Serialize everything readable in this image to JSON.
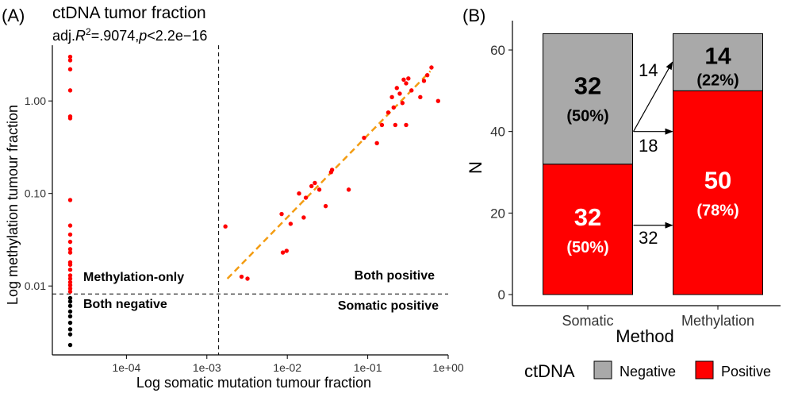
{
  "chart_data": [
    {
      "type": "scatter",
      "panel_label": "(A)",
      "title": "ctDNA tumor fraction",
      "subtitle": {
        "prefix": "adj.",
        "r": "R",
        "sup": "2",
        "stat": "=.9074,",
        "p": "p",
        "pval": "<2.2e−16"
      },
      "xlabel": "Log somatic mutation tumour fraction",
      "ylabel": "Log methylation tumour fraction",
      "x_scale": "log10",
      "y_scale": "log10",
      "xlim": [
        1.2e-05,
        1.0
      ],
      "ylim": [
        0.0018,
        4.0
      ],
      "x_ticks": [
        {
          "v": 0.0001,
          "label": "1e-04"
        },
        {
          "v": 0.001,
          "label": "1e-03"
        },
        {
          "v": 0.01,
          "label": "1e-02"
        },
        {
          "v": 0.1,
          "label": "1e-01"
        },
        {
          "v": 1.0,
          "label": "1e+00"
        }
      ],
      "y_ticks": [
        {
          "v": 0.01,
          "label": "0.01"
        },
        {
          "v": 0.1,
          "label": "0.10"
        },
        {
          "v": 1.0,
          "label": "1.00"
        }
      ],
      "threshold_x": 0.0014,
      "threshold_y": 0.0082,
      "grid": false,
      "quadrant_labels": {
        "top_left": "Methylation-only",
        "bottom_left": "Both negative",
        "top_right": "Both positive",
        "bottom_right": "Somatic positive"
      },
      "colors": {
        "positive": "#ff0000",
        "negative": "#000000",
        "fit": "#f39c12"
      },
      "fit_line": [
        [
          0.0018,
          0.012
        ],
        [
          0.6,
          2.1
        ]
      ],
      "red_points": [
        [
          2e-05,
          3.0
        ],
        [
          2e-05,
          2.75
        ],
        [
          2e-05,
          2.2
        ],
        [
          2e-05,
          1.3
        ],
        [
          2e-05,
          0.68
        ],
        [
          2e-05,
          0.65
        ],
        [
          2e-05,
          0.085
        ],
        [
          2e-05,
          0.045
        ],
        [
          2e-05,
          0.036
        ],
        [
          2e-05,
          0.03
        ],
        [
          2e-05,
          0.025
        ],
        [
          2e-05,
          0.023
        ],
        [
          2e-05,
          0.018
        ],
        [
          2e-05,
          0.017
        ],
        [
          2e-05,
          0.015
        ],
        [
          2e-05,
          0.013
        ],
        [
          2e-05,
          0.012
        ],
        [
          2e-05,
          0.011
        ],
        [
          2e-05,
          0.0102
        ],
        [
          2e-05,
          0.0094
        ],
        [
          2e-05,
          0.0087
        ],
        [
          0.0017,
          0.044
        ],
        [
          0.0027,
          0.0126
        ],
        [
          0.0032,
          0.012
        ],
        [
          0.0085,
          0.06
        ],
        [
          0.0088,
          0.023
        ],
        [
          0.0098,
          0.024
        ],
        [
          0.011,
          0.047
        ],
        [
          0.014,
          0.1
        ],
        [
          0.016,
          0.055
        ],
        [
          0.017,
          0.09
        ],
        [
          0.02,
          0.12
        ],
        [
          0.022,
          0.13
        ],
        [
          0.025,
          0.11
        ],
        [
          0.03,
          0.073
        ],
        [
          0.035,
          0.17
        ],
        [
          0.036,
          0.18
        ],
        [
          0.058,
          0.11
        ],
        [
          0.09,
          0.4
        ],
        [
          0.13,
          0.35
        ],
        [
          0.15,
          0.55
        ],
        [
          0.18,
          0.75
        ],
        [
          0.2,
          1.1
        ],
        [
          0.21,
          0.85
        ],
        [
          0.22,
          0.55
        ],
        [
          0.23,
          1.38
        ],
        [
          0.25,
          1.2
        ],
        [
          0.27,
          0.95
        ],
        [
          0.28,
          1.7
        ],
        [
          0.3,
          1.55
        ],
        [
          0.32,
          1.75
        ],
        [
          0.35,
          1.3
        ],
        [
          0.3,
          0.55
        ],
        [
          0.45,
          1.1
        ],
        [
          0.5,
          1.65
        ],
        [
          0.55,
          1.9
        ],
        [
          0.62,
          2.3
        ],
        [
          0.75,
          1.0
        ]
      ],
      "black_points": [
        [
          2e-05,
          0.0074
        ],
        [
          2e-05,
          0.0068
        ],
        [
          2e-05,
          0.0061
        ],
        [
          2e-05,
          0.0053
        ],
        [
          2e-05,
          0.0047
        ],
        [
          2e-05,
          0.004
        ],
        [
          2e-05,
          0.0034
        ],
        [
          2e-05,
          0.003
        ],
        [
          2e-05,
          0.0023
        ]
      ]
    },
    {
      "type": "bar",
      "stacked": true,
      "panel_label": "(B)",
      "xlabel": "Method",
      "ylabel": "N",
      "categories": [
        "Somatic",
        "Methylation"
      ],
      "ylim": [
        0,
        64
      ],
      "y_ticks": [
        0,
        20,
        40,
        60
      ],
      "series": [
        {
          "name": "Positive",
          "color": "#ff0000",
          "values": [
            32,
            50
          ],
          "labels": [
            "32",
            "50"
          ],
          "pct": [
            "(50%)",
            "(78%)"
          ]
        },
        {
          "name": "Negative",
          "color": "#a9a9a9",
          "values": [
            32,
            14
          ],
          "labels": [
            "32",
            "14"
          ],
          "pct": [
            "(50%)",
            "(22%)"
          ]
        }
      ],
      "transitions": [
        {
          "label": "14",
          "from": 40,
          "to": 57
        },
        {
          "label": "18",
          "from": 40,
          "to": 40
        },
        {
          "label": "32",
          "from": 17,
          "to": 17
        }
      ],
      "legend": {
        "title": "ctDNA",
        "placement": "bottom",
        "entries": [
          "Negative",
          "Positive"
        ]
      },
      "grid": false
    }
  ]
}
